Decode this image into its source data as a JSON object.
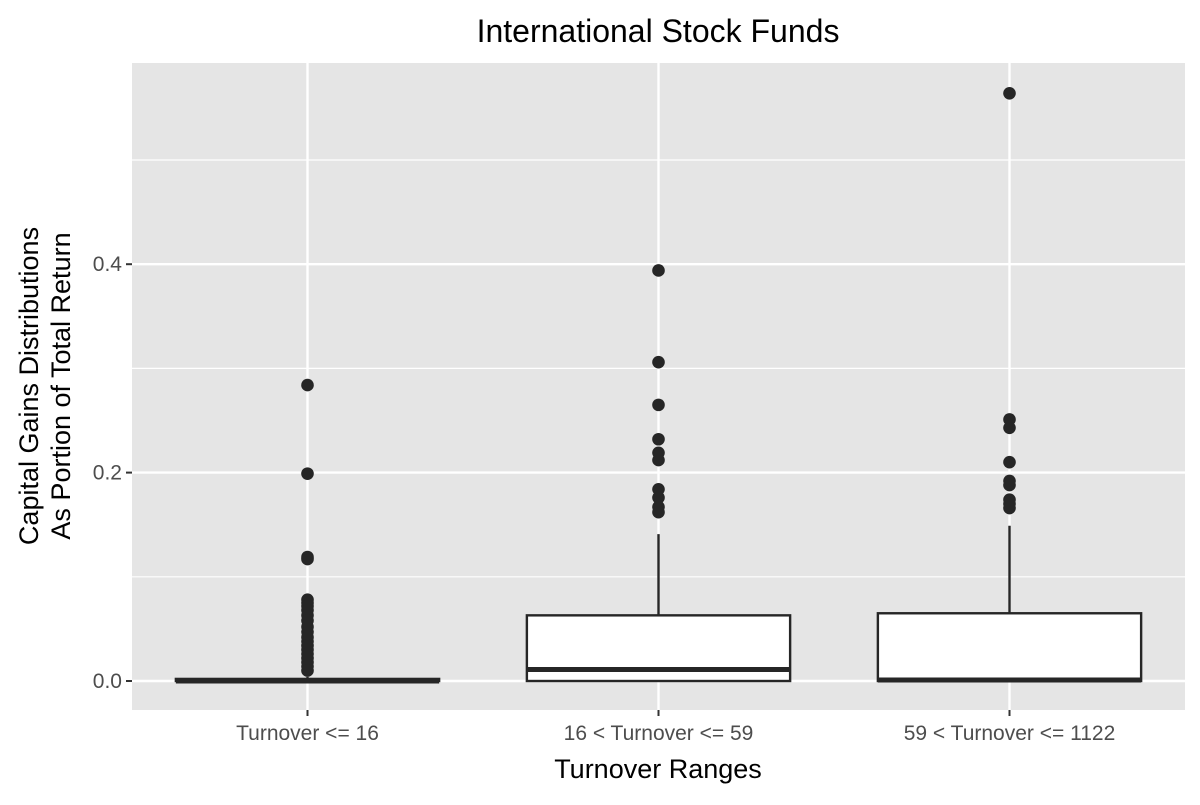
{
  "chart_data": {
    "type": "boxplot",
    "title": "International Stock Funds",
    "xlabel": "Turnover Ranges",
    "ylabel_lines": [
      "Capital Gains Distributions",
      "As Portion of Total Return"
    ],
    "ylim": [
      -0.028,
      0.592
    ],
    "yticks": [
      0.0,
      0.2,
      0.4
    ],
    "ytick_labels": [
      "0.0",
      "0.2",
      "0.4"
    ],
    "y_minor_gridlines": [
      0.1,
      0.3,
      0.5
    ],
    "grid": true,
    "legend": null,
    "categories": [
      "Turnover <= 16",
      "16 < Turnover <= 59",
      "59 < Turnover <= 1122"
    ],
    "boxes": [
      {
        "category": "Turnover <= 16",
        "q1": 0.0,
        "median": 0.0,
        "q3": 0.002,
        "whisker_low": 0.0,
        "whisker_high": 0.004,
        "outliers": [
          0.284,
          0.199,
          0.119,
          0.117,
          0.078,
          0.075,
          0.072,
          0.068,
          0.063,
          0.058,
          0.052,
          0.047,
          0.042,
          0.038,
          0.034,
          0.03,
          0.026,
          0.022,
          0.018,
          0.014,
          0.01
        ]
      },
      {
        "category": "16 < Turnover <= 59",
        "q1": 0.0,
        "median": 0.011,
        "q3": 0.063,
        "whisker_low": 0.0,
        "whisker_high": 0.141,
        "outliers": [
          0.394,
          0.306,
          0.265,
          0.232,
          0.219,
          0.212,
          0.184,
          0.176,
          0.167,
          0.162
        ]
      },
      {
        "category": "59 < Turnover <= 1122",
        "q1": 0.0,
        "median": 0.001,
        "q3": 0.065,
        "whisker_low": 0.0,
        "whisker_high": 0.149,
        "outliers": [
          0.564,
          0.251,
          0.243,
          0.21,
          0.192,
          0.188,
          0.174,
          0.17,
          0.166
        ]
      }
    ]
  },
  "colors": {
    "panel_background": "#e5e5e5",
    "gridline": "#ffffff",
    "box_fill": "#ffffff",
    "box_stroke": "#262626",
    "point": "#262626",
    "axis_text": "#4d4d4d",
    "title_text": "#000000"
  }
}
